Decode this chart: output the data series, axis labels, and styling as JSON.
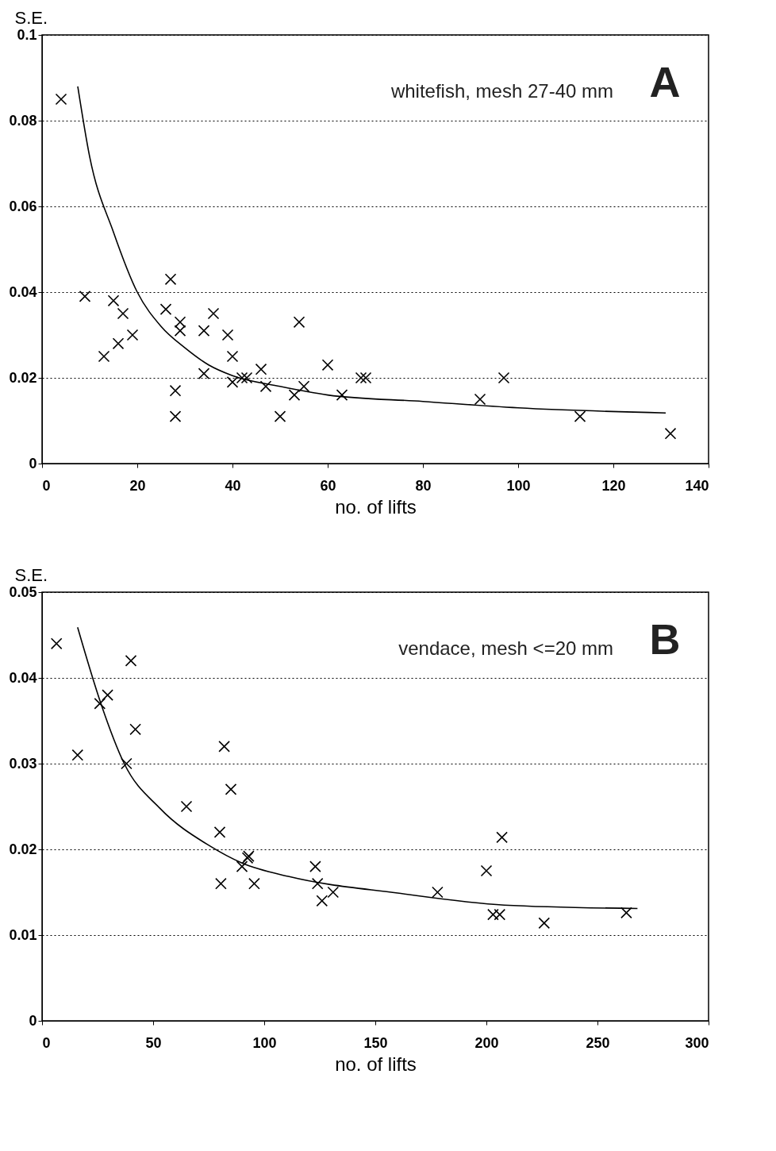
{
  "chart_data": [
    {
      "type": "scatter",
      "xlabel": "no. of lifts",
      "ylabel": "S.E.",
      "annotations": [
        "whitefish, mesh 27-40 mm",
        "A"
      ],
      "xlim": [
        0,
        140
      ],
      "xticks": [
        0,
        20,
        40,
        60,
        80,
        100,
        120,
        140
      ],
      "ylim": [
        0,
        0.1
      ],
      "yticks": [
        0,
        0.02,
        0.04,
        0.06,
        0.08,
        0.1
      ],
      "grid": "y",
      "series": [
        {
          "marker": "cross",
          "color": "#000000",
          "x": [
            4,
            9,
            13,
            15,
            16,
            17,
            19,
            26,
            27,
            28,
            28,
            29,
            29,
            34,
            34,
            36,
            39,
            40,
            40,
            42,
            43,
            46,
            47,
            50,
            53,
            54,
            55,
            60,
            63,
            67,
            68,
            92,
            97,
            113,
            132
          ],
          "values": [
            0.085,
            0.039,
            0.025,
            0.038,
            0.028,
            0.035,
            0.03,
            0.036,
            0.043,
            0.017,
            0.011,
            0.033,
            0.031,
            0.031,
            0.021,
            0.035,
            0.03,
            0.025,
            0.019,
            0.02,
            0.02,
            0.022,
            0.018,
            0.011,
            0.016,
            0.033,
            0.018,
            0.023,
            0.016,
            0.02,
            0.02,
            0.015,
            0.02,
            0.011,
            0.007
          ]
        },
        {
          "type": "line",
          "marker": "none",
          "color": "#000000",
          "x": [
            7.5,
            10,
            15,
            20,
            25,
            30,
            35,
            40,
            50,
            60,
            80,
            100,
            131
          ],
          "values": [
            0.088,
            0.0716,
            0.054,
            0.04,
            0.032,
            0.027,
            0.023,
            0.0205,
            0.018,
            0.016,
            0.0145,
            0.013,
            0.0118
          ]
        }
      ]
    },
    {
      "type": "scatter",
      "xlabel": "no. of lifts",
      "ylabel": "S.E.",
      "annotations": [
        "vendace, mesh <=20 mm",
        "B"
      ],
      "xlim": [
        0,
        300
      ],
      "xticks": [
        0,
        50,
        100,
        150,
        200,
        250,
        300
      ],
      "ylim": [
        0,
        0.05
      ],
      "yticks": [
        0,
        0.01,
        0.02,
        0.03,
        0.04,
        0.05
      ],
      "grid": "y",
      "series": [
        {
          "marker": "cross",
          "color": "#000000",
          "x": [
            6.5,
            16,
            26,
            29.5,
            38,
            40,
            42,
            65,
            80,
            80.5,
            82,
            85,
            90,
            92.5,
            93,
            95.5,
            123,
            124,
            126,
            131,
            178,
            200,
            203,
            206,
            207,
            226,
            263
          ],
          "values": [
            0.044,
            0.031,
            0.037,
            0.038,
            0.03,
            0.042,
            0.034,
            0.025,
            0.022,
            0.016,
            0.032,
            0.027,
            0.018,
            0.019,
            0.0192,
            0.016,
            0.018,
            0.016,
            0.014,
            0.015,
            0.015,
            0.0175,
            0.0124,
            0.0124,
            0.0214,
            0.0114,
            0.0126
          ]
        },
        {
          "type": "line",
          "marker": "none",
          "color": "#000000",
          "x": [
            16,
            26.5,
            37,
            53,
            75.5,
            90,
            111.6,
            160,
            208,
            268
          ],
          "values": [
            0.0459,
            0.037,
            0.03,
            0.0248,
            0.0204,
            0.0184,
            0.0168,
            0.0149,
            0.0135,
            0.0131
          ]
        }
      ]
    }
  ]
}
